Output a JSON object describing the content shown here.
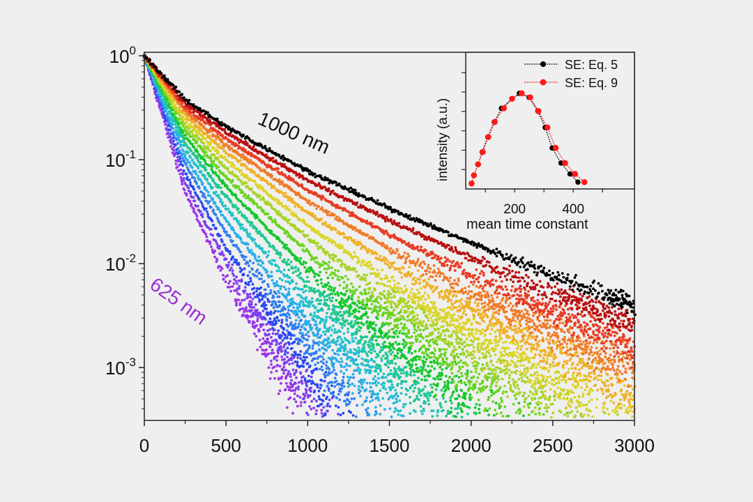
{
  "chart_data": [
    {
      "type": "scatter",
      "title": "",
      "xlabel": "",
      "ylabel": "",
      "xlim": [
        0,
        3000
      ],
      "ylim": [
        0.00031,
        1.08
      ],
      "yscale": "log",
      "grid": false,
      "x_ticks": [
        "0",
        "500",
        "1000",
        "1500",
        "2000",
        "2500",
        "3000"
      ],
      "y_ticks": [
        {
          "base": "10",
          "exp": "0"
        },
        {
          "base": "10",
          "exp": "-1"
        },
        {
          "base": "10",
          "exp": "-2"
        },
        {
          "base": "10",
          "exp": "-3"
        }
      ],
      "annotations": [
        {
          "text": "1000 nm",
          "color": "#000000"
        },
        {
          "text": "625 nm",
          "color": "#9a2fd0"
        }
      ],
      "x": [
        0,
        250,
        500,
        1000,
        1500,
        2000,
        2500,
        3000
      ],
      "series": [
        {
          "color": "#9b35e8",
          "values": [
            1,
            0.048,
            0.0072,
            0.00033,
            null,
            null,
            null,
            null
          ]
        },
        {
          "color": "#7a40f0",
          "values": [
            1,
            0.06,
            0.0104,
            0.00059,
            null,
            null,
            null,
            null
          ]
        },
        {
          "color": "#2848f0",
          "values": [
            1,
            0.073,
            0.0141,
            0.00098,
            null,
            null,
            null,
            null
          ]
        },
        {
          "color": "#2f7ff0",
          "values": [
            1,
            0.09,
            0.0198,
            0.0017,
            null,
            null,
            null,
            null
          ]
        },
        {
          "color": "#28aee8",
          "values": [
            1,
            0.106,
            0.026,
            0.0027,
            0.00039,
            null,
            null,
            null
          ]
        },
        {
          "color": "#22c2c8",
          "values": [
            1,
            0.125,
            0.034,
            0.0042,
            0.00069,
            null,
            null,
            null
          ]
        },
        {
          "color": "#20c890",
          "values": [
            1,
            0.145,
            0.044,
            0.0062,
            0.00117,
            null,
            null,
            null
          ]
        },
        {
          "color": "#12c82a",
          "values": [
            1,
            0.167,
            0.055,
            0.0089,
            0.0019,
            0.00047,
            null,
            null
          ]
        },
        {
          "color": "#6ad420",
          "values": [
            1,
            0.192,
            0.068,
            0.0128,
            0.0031,
            0.00084,
            null,
            null
          ]
        },
        {
          "color": "#a8d428",
          "values": [
            1,
            0.217,
            0.083,
            0.0176,
            0.0047,
            0.0014,
            0.00047,
            null
          ]
        },
        {
          "color": "#dcd428",
          "values": [
            1,
            0.241,
            0.099,
            0.0233,
            0.0068,
            0.0022,
            0.0008,
            0.0003
          ]
        },
        {
          "color": "#f0b028",
          "values": [
            1,
            0.268,
            0.118,
            0.031,
            0.01,
            0.0036,
            0.0014,
            0.00056
          ]
        },
        {
          "color": "#f07a28",
          "values": [
            1,
            0.295,
            0.138,
            0.04,
            0.0138,
            0.0053,
            0.0022,
            0.00096
          ]
        },
        {
          "color": "#e83c24",
          "values": [
            1,
            0.323,
            0.159,
            0.051,
            0.019,
            0.0078,
            0.0035,
            0.0016
          ]
        },
        {
          "color": "#b81010",
          "values": [
            1,
            0.352,
            0.183,
            0.063,
            0.026,
            0.0114,
            0.0053,
            0.0026
          ]
        },
        {
          "color": "#000000",
          "values": [
            1,
            0.38,
            0.208,
            0.078,
            0.034,
            0.0158,
            0.0078,
            0.004
          ]
        }
      ]
    },
    {
      "type": "line",
      "title": "",
      "xlabel": "mean time constant",
      "ylabel": "intensity (a.u.)",
      "xlim": [
        33,
        609
      ],
      "ylim": [
        0,
        1
      ],
      "grid": false,
      "x_ticks": [
        "200",
        "400"
      ],
      "legend": "top-right",
      "series": [
        {
          "name": "SE: Eq. 5",
          "color": "#000000",
          "x": [
            53,
            61,
            75,
            89,
            108,
            130,
            155,
            191,
            216,
            249,
            279,
            304,
            328,
            358,
            389,
            416
          ],
          "y": [
            0.04,
            0.1,
            0.18,
            0.27,
            0.38,
            0.49,
            0.59,
            0.66,
            0.7,
            0.67,
            0.57,
            0.45,
            0.3,
            0.19,
            0.11,
            0.05
          ]
        },
        {
          "name": "SE: Eq. 9",
          "color": "#ff1a1a",
          "x": [
            53,
            61,
            75,
            91,
            110,
            132,
            163,
            191,
            224,
            253,
            281,
            312,
            340,
            372,
            406,
            438
          ],
          "y": [
            0.04,
            0.1,
            0.18,
            0.27,
            0.38,
            0.49,
            0.59,
            0.66,
            0.7,
            0.67,
            0.57,
            0.45,
            0.3,
            0.19,
            0.11,
            0.05
          ]
        }
      ]
    }
  ]
}
